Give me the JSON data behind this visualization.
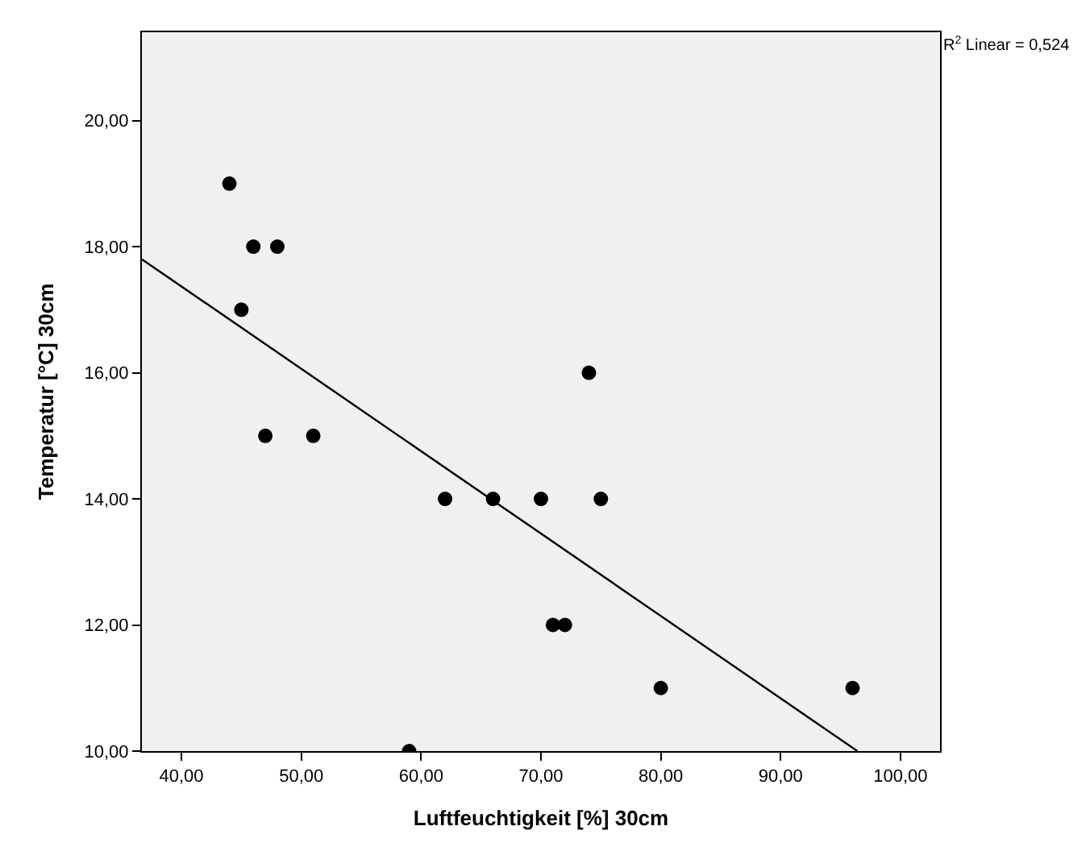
{
  "chart_data": {
    "type": "scatter",
    "xlabel": "Luftfeuchtigkeit [%] 30cm",
    "ylabel": "Temperatur [°C] 30cm",
    "annotations": [
      "R$^{2}$ Linear = 0,524"
    ],
    "series": [
      {
        "color": "#000000",
        "x": [
          44,
          46,
          48,
          45,
          47,
          51,
          74,
          62,
          66,
          70,
          75,
          71,
          72,
          80,
          96,
          59
        ],
        "values": [
          19,
          18,
          18,
          17,
          15,
          15,
          16,
          14,
          14,
          14,
          14,
          12,
          12,
          11,
          11,
          10
        ]
      },
      {
        "type": "line",
        "color": "#000000",
        "marker": "none",
        "x": [
          36.7,
          96.4
        ],
        "values": [
          17.8,
          10
        ]
      }
    ],
    "xlim": [
      36.7,
      103.3
    ],
    "ylim": [
      10,
      21.4
    ],
    "xticks": [
      {
        "value": 40,
        "label": "40,00"
      },
      {
        "value": 50,
        "label": "50,00"
      },
      {
        "value": 60,
        "label": "60,00"
      },
      {
        "value": 70,
        "label": "70,00"
      },
      {
        "value": 80,
        "label": "80,00"
      },
      {
        "value": 90,
        "label": "90,00"
      },
      {
        "value": 100,
        "label": "100,00"
      }
    ],
    "yticks": [
      {
        "value": 10,
        "label": "10,00"
      },
      {
        "value": 12,
        "label": "12,00"
      },
      {
        "value": 14,
        "label": "14,00"
      },
      {
        "value": 16,
        "label": "16,00"
      },
      {
        "value": 18,
        "label": "18,00"
      },
      {
        "value": 20,
        "label": "20,00"
      }
    ],
    "marker": "circle"
  }
}
